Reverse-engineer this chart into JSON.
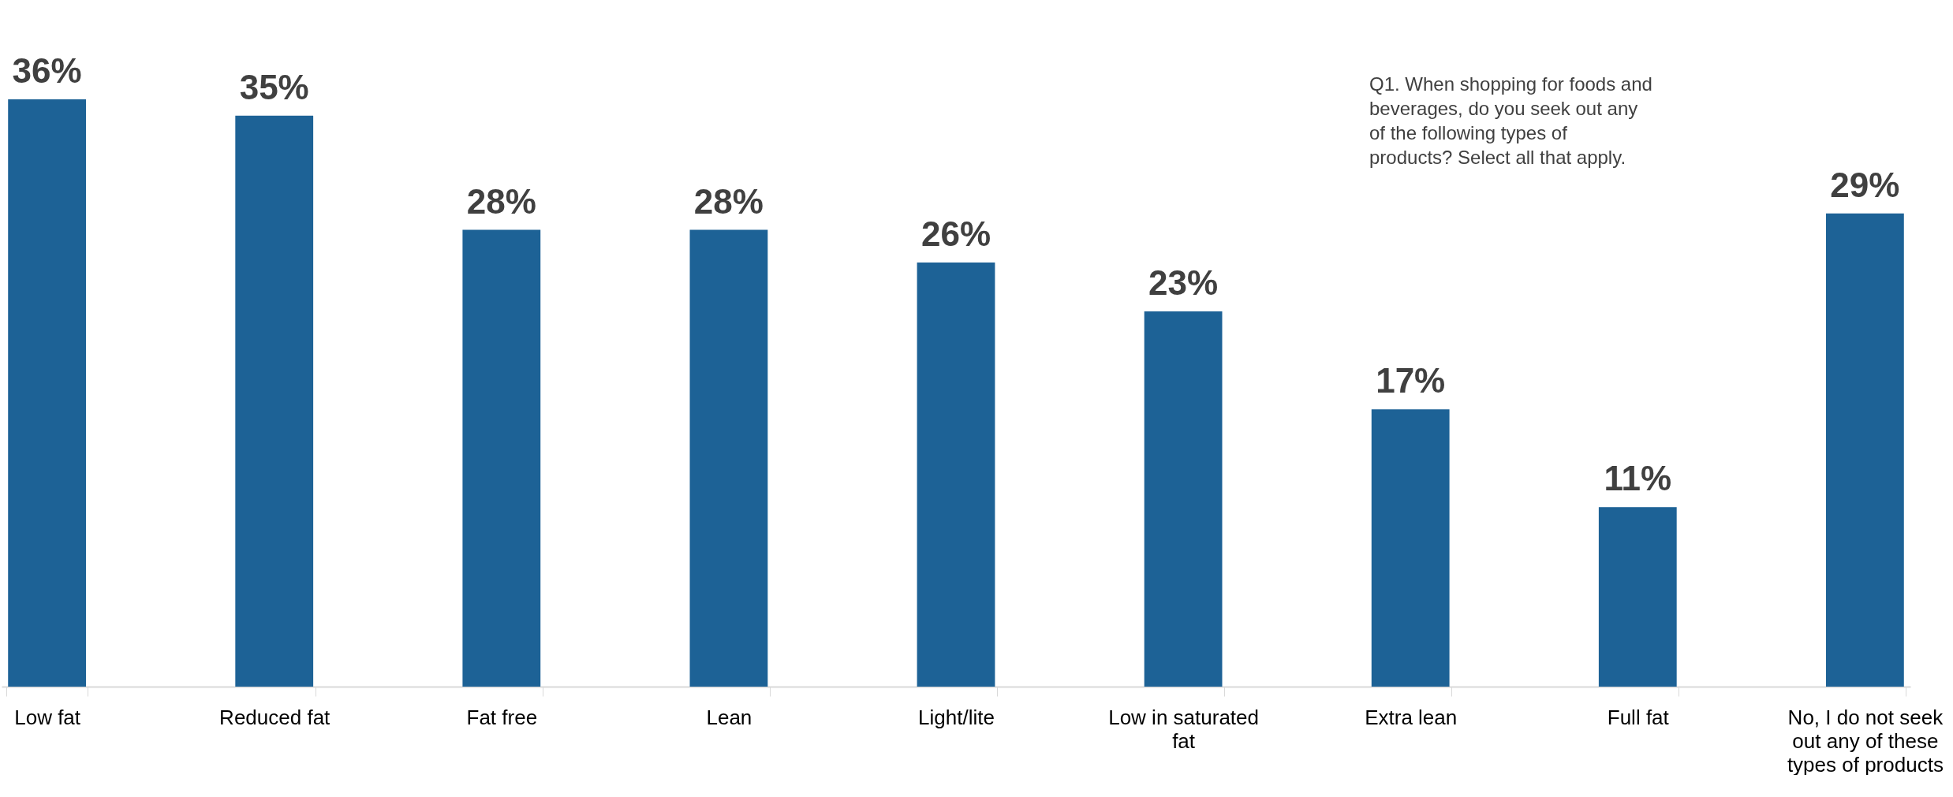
{
  "chart_data": {
    "type": "bar",
    "categories": [
      "Low fat",
      "Reduced fat",
      "Fat free",
      "Lean",
      "Light/lite",
      "Low in saturated fat",
      "Extra lean",
      "Full fat",
      "No, I do not seek out any of these types of products"
    ],
    "values": [
      36,
      35,
      28,
      28,
      26,
      23,
      17,
      11,
      29
    ],
    "value_labels": [
      "36%",
      "35%",
      "28%",
      "28%",
      "26%",
      "23%",
      "17%",
      "11%",
      "29%"
    ],
    "color": "#1d6296",
    "grid": false,
    "annotations": [
      "Q1. When shopping for foods and beverages, do you seek out any of the following types of products? Select all that apply."
    ]
  }
}
